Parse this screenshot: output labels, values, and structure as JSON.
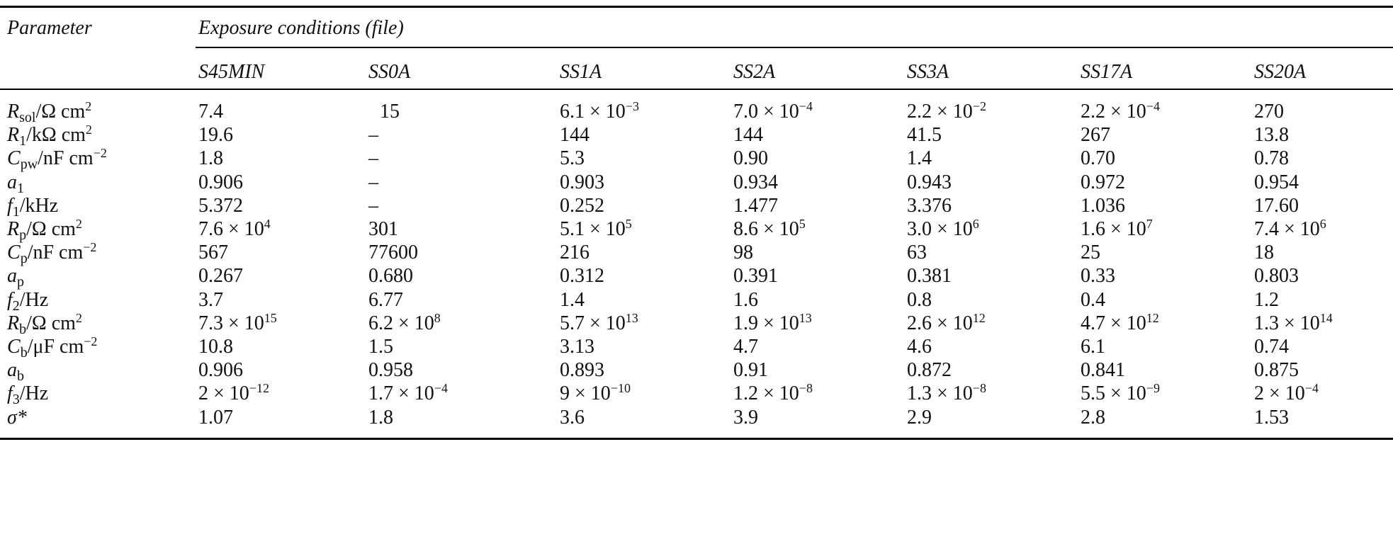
{
  "header": {
    "parameter_label": "Parameter",
    "exposure_label_prefix": "Exposure conditions (",
    "exposure_label_file": "file",
    "exposure_label_suffix": ")"
  },
  "columns": [
    "S45MIN",
    "SS0A",
    "SS1A",
    "SS2A",
    "SS3A",
    "SS17A",
    "SS20A"
  ],
  "rows": [
    {
      "param": {
        "sym": "R",
        "sub": "sol",
        "unit": "/Ω cm",
        "sup": "2"
      },
      "values": [
        {
          "v": "7.4"
        },
        {
          "v": "15",
          "pad": true
        },
        {
          "m": "6.1 × 10",
          "e": "−3"
        },
        {
          "m": "7.0 × 10",
          "e": "−4"
        },
        {
          "m": "2.2 × 10",
          "e": "−2"
        },
        {
          "m": "2.2 × 10",
          "e": "−4"
        },
        {
          "v": "270"
        }
      ]
    },
    {
      "param": {
        "sym": "R",
        "sub": "1",
        "unit": "/kΩ cm",
        "sup": "2"
      },
      "values": [
        {
          "v": "19.6"
        },
        {
          "v": "–"
        },
        {
          "v": "144"
        },
        {
          "v": "144"
        },
        {
          "v": "41.5"
        },
        {
          "v": "267"
        },
        {
          "v": "13.8"
        }
      ]
    },
    {
      "param": {
        "sym": "C",
        "sub": "pw",
        "unit": "/nF cm",
        "sup": "−2"
      },
      "values": [
        {
          "v": "1.8"
        },
        {
          "v": "–"
        },
        {
          "v": "5.3"
        },
        {
          "v": "0.90"
        },
        {
          "v": "1.4"
        },
        {
          "v": "0.70"
        },
        {
          "v": "0.78"
        }
      ]
    },
    {
      "param": {
        "sym": "a",
        "sub": "1",
        "unit": "",
        "sup": ""
      },
      "values": [
        {
          "v": "0.906"
        },
        {
          "v": "–"
        },
        {
          "v": "0.903"
        },
        {
          "v": "0.934"
        },
        {
          "v": "0.943"
        },
        {
          "v": "0.972"
        },
        {
          "v": "0.954"
        }
      ]
    },
    {
      "param": {
        "sym": "f",
        "sub": "1",
        "unit": "/kHz",
        "sup": ""
      },
      "values": [
        {
          "v": "5.372"
        },
        {
          "v": "–"
        },
        {
          "v": "0.252"
        },
        {
          "v": "1.477"
        },
        {
          "v": "3.376"
        },
        {
          "v": "1.036"
        },
        {
          "v": "17.60"
        }
      ]
    },
    {
      "param": {
        "sym": "R",
        "sub": "p",
        "unit": "/Ω cm",
        "sup": "2"
      },
      "values": [
        {
          "m": "7.6 × 10",
          "e": "4"
        },
        {
          "v": "301"
        },
        {
          "m": "5.1 × 10",
          "e": "5"
        },
        {
          "m": "8.6 × 10",
          "e": "5"
        },
        {
          "m": "3.0 × 10",
          "e": "6"
        },
        {
          "m": "1.6 × 10",
          "e": "7"
        },
        {
          "m": "7.4 × 10",
          "e": "6"
        }
      ]
    },
    {
      "param": {
        "sym": "C",
        "sub": "p",
        "unit": "/nF cm",
        "sup": "−2"
      },
      "values": [
        {
          "v": "567"
        },
        {
          "v": "77600"
        },
        {
          "v": "216"
        },
        {
          "v": "98"
        },
        {
          "v": "63"
        },
        {
          "v": "25"
        },
        {
          "v": "18"
        }
      ]
    },
    {
      "param": {
        "sym": "a",
        "sub": "p",
        "unit": "",
        "sup": ""
      },
      "values": [
        {
          "v": "0.267"
        },
        {
          "v": "0.680"
        },
        {
          "v": "0.312"
        },
        {
          "v": "0.391"
        },
        {
          "v": "0.381"
        },
        {
          "v": "0.33"
        },
        {
          "v": "0.803"
        }
      ]
    },
    {
      "param": {
        "sym": "f",
        "sub": "2",
        "unit": "/Hz",
        "sup": ""
      },
      "values": [
        {
          "v": "3.7"
        },
        {
          "v": "6.77"
        },
        {
          "v": "1.4"
        },
        {
          "v": "1.6"
        },
        {
          "v": "0.8"
        },
        {
          "v": "0.4"
        },
        {
          "v": "1.2"
        }
      ]
    },
    {
      "param": {
        "sym": "R",
        "sub": "b",
        "unit": "/Ω cm",
        "sup": "2"
      },
      "values": [
        {
          "m": "7.3 × 10",
          "e": "15"
        },
        {
          "m": "6.2 × 10",
          "e": "8"
        },
        {
          "m": "5.7 × 10",
          "e": "13"
        },
        {
          "m": "1.9 × 10",
          "e": "13"
        },
        {
          "m": "2.6 × 10",
          "e": "12"
        },
        {
          "m": "4.7 × 10",
          "e": "12"
        },
        {
          "m": "1.3 × 10",
          "e": "14"
        }
      ]
    },
    {
      "param": {
        "sym": "C",
        "sub": "b",
        "unit": "/μF cm",
        "sup": "−2"
      },
      "values": [
        {
          "v": "10.8"
        },
        {
          "v": "1.5"
        },
        {
          "v": "3.13"
        },
        {
          "v": "4.7"
        },
        {
          "v": "4.6"
        },
        {
          "v": "6.1"
        },
        {
          "v": "0.74"
        }
      ]
    },
    {
      "param": {
        "sym": "a",
        "sub": "b",
        "unit": "",
        "sup": ""
      },
      "values": [
        {
          "v": "0.906"
        },
        {
          "v": "0.958"
        },
        {
          "v": "0.893"
        },
        {
          "v": "0.91"
        },
        {
          "v": "0.872"
        },
        {
          "v": "0.841"
        },
        {
          "v": "0.875"
        }
      ]
    },
    {
      "param": {
        "sym": "f",
        "sub": "3",
        "unit": "/Hz",
        "sup": ""
      },
      "values": [
        {
          "m": "2 × 10",
          "e": "−12"
        },
        {
          "m": "1.7 × 10",
          "e": "−4"
        },
        {
          "m": "9 × 10",
          "e": "−10"
        },
        {
          "m": "1.2 × 10",
          "e": "−8"
        },
        {
          "m": "1.3 × 10",
          "e": "−8"
        },
        {
          "m": "5.5 × 10",
          "e": "−9"
        },
        {
          "m": "2 × 10",
          "e": "−4"
        }
      ]
    },
    {
      "param": {
        "sym": "σ*",
        "sub": "",
        "unit": "",
        "sup": ""
      },
      "values": [
        {
          "v": "1.07"
        },
        {
          "v": "1.8"
        },
        {
          "v": "3.6"
        },
        {
          "v": "3.9"
        },
        {
          "v": "2.9"
        },
        {
          "v": "2.8"
        },
        {
          "v": "1.53"
        }
      ]
    }
  ]
}
